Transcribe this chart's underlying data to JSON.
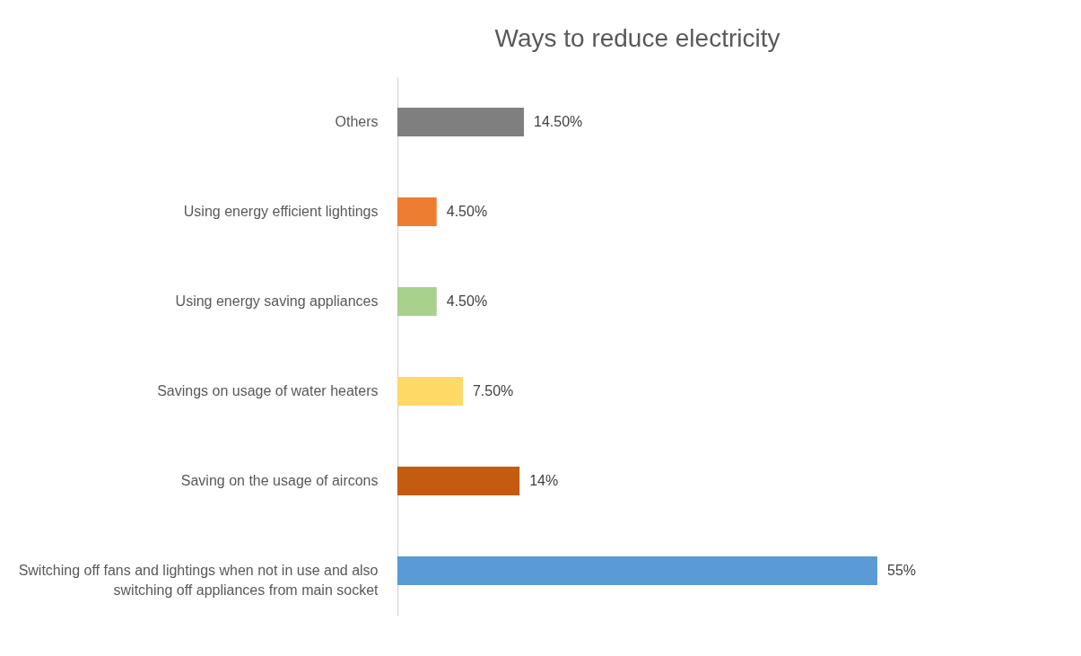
{
  "chart_data": {
    "type": "bar",
    "orientation": "horizontal",
    "title": "Ways to reduce electricity",
    "categories": [
      "Others",
      "Using energy efficient lightings",
      "Using energy saving appliances",
      "Savings on usage of water heaters",
      "Saving on the usage of aircons",
      "Switching off fans and lightings when not in use and also switching off appliances from main socket"
    ],
    "values": [
      14.5,
      4.5,
      4.5,
      7.5,
      14,
      55
    ],
    "colors": [
      "#7f7f7f",
      "#ed7d31",
      "#a9d18e",
      "#ffd966",
      "#c55a11",
      "#5b9bd5"
    ],
    "value_labels": [
      "14.50%",
      "4.50%",
      "4.50%",
      "7.50%",
      "14%",
      "55%"
    ],
    "data_labels": false
  }
}
